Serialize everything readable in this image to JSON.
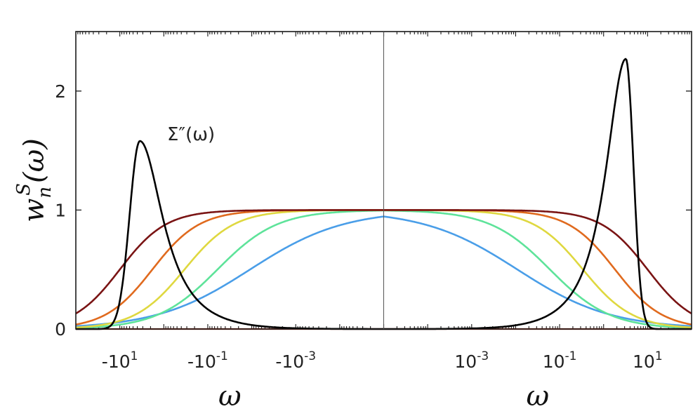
{
  "chart_data": {
    "type": "line",
    "title": "",
    "ylabel": {
      "base": "w",
      "sub": "n",
      "sup": "S",
      "arg": "(ω)"
    },
    "xlabel_left": "ω",
    "xlabel_right": "ω",
    "xscale": "symmetric log (negative frequencies on the left half, positive frequencies on the right half)",
    "xlim_abs": [
      1e-05,
      100
    ],
    "ylim": [
      0,
      2.5
    ],
    "yticks": [
      {
        "value": 0,
        "label": "0"
      },
      {
        "value": 1,
        "label": "1"
      },
      {
        "value": 2,
        "label": "2"
      }
    ],
    "xticks": [
      {
        "value": -10,
        "base": "-10",
        "exp": "1"
      },
      {
        "value": -0.1,
        "base": "-10",
        "exp": "-1"
      },
      {
        "value": -0.001,
        "base": "-10",
        "exp": "-3"
      },
      {
        "value": 0.001,
        "base": "10",
        "exp": "-3"
      },
      {
        "value": 0.1,
        "base": "10",
        "exp": "-1"
      },
      {
        "value": 10,
        "base": "10",
        "exp": "1"
      }
    ],
    "grid": false,
    "annotation": {
      "text": "Σ″(ω)",
      "x": -3.5,
      "y": 1.6
    },
    "series": [
      {
        "color": "#4a9ee8",
        "shape": "window",
        "center": 1.0,
        "edge": -1.96,
        "halfwidth": 1.17
      },
      {
        "color": "#5ee39a",
        "shape": "window",
        "center": 1.0,
        "edge": -1.22,
        "halfwidth": 0.75
      },
      {
        "color": "#dfd840",
        "shape": "window",
        "center": 1.0,
        "edge": -0.47,
        "halfwidth": 0.62
      },
      {
        "color": "#e06a1e",
        "shape": "window",
        "center": 1.0,
        "edge": 0.26,
        "halfwidth": 0.59
      },
      {
        "color": "#7a1414",
        "shape": "window",
        "center": 1.0,
        "edge": 1.0,
        "halfwidth": 0.58
      },
      {
        "color": "#000000",
        "shape": "sigma",
        "peaks": [
          {
            "x": -3.5,
            "y": 1.58
          },
          {
            "x": 3.2,
            "y": 2.27
          }
        ]
      }
    ],
    "baseline_color": "#b03020"
  }
}
